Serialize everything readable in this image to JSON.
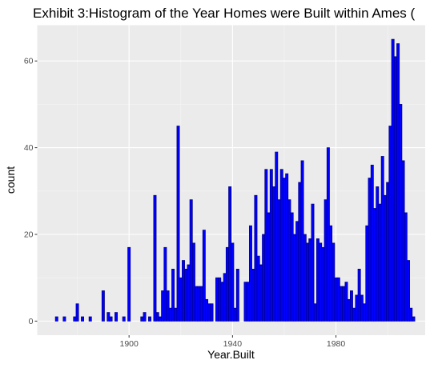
{
  "chart_data": {
    "type": "bar",
    "title": "Exhibit 3:Histogram of the Year Homes were Built within Ames (",
    "xlabel": "Year.Built",
    "ylabel": "count",
    "xlim": [
      1864.5,
      2014.5
    ],
    "ylim": [
      -3.25,
      68.25
    ],
    "x_ticks": [
      1900,
      1940,
      1980
    ],
    "y_ticks": [
      0,
      20,
      40,
      60
    ],
    "grid": true,
    "bin_width": 1,
    "x": [
      1872,
      1875,
      1879,
      1880,
      1882,
      1885,
      1890,
      1892,
      1893,
      1895,
      1898,
      1900,
      1905,
      1906,
      1908,
      1910,
      1911,
      1912,
      1913,
      1914,
      1915,
      1916,
      1917,
      1918,
      1919,
      1920,
      1921,
      1922,
      1923,
      1924,
      1925,
      1926,
      1927,
      1928,
      1929,
      1930,
      1931,
      1932,
      1934,
      1935,
      1936,
      1937,
      1938,
      1939,
      1940,
      1941,
      1942,
      1945,
      1946,
      1947,
      1948,
      1949,
      1950,
      1951,
      1952,
      1953,
      1954,
      1955,
      1956,
      1957,
      1958,
      1959,
      1960,
      1961,
      1962,
      1963,
      1964,
      1965,
      1966,
      1967,
      1968,
      1969,
      1970,
      1971,
      1972,
      1973,
      1974,
      1975,
      1976,
      1977,
      1978,
      1979,
      1980,
      1981,
      1982,
      1983,
      1984,
      1985,
      1986,
      1987,
      1988,
      1989,
      1990,
      1991,
      1992,
      1993,
      1994,
      1995,
      1996,
      1997,
      1998,
      1999,
      2000,
      2001,
      2002,
      2003,
      2004,
      2005,
      2006,
      2007,
      2008,
      2009,
      2010
    ],
    "values": [
      1,
      1,
      1,
      4,
      1,
      1,
      7,
      2,
      1,
      2,
      1,
      17,
      1,
      2,
      1,
      29,
      2,
      1,
      7,
      17,
      7,
      3,
      12,
      3,
      45,
      10,
      14,
      12,
      13,
      28,
      18,
      8,
      8,
      8,
      21,
      5,
      4,
      4,
      10,
      10,
      9,
      11,
      17,
      31,
      18,
      3,
      12,
      9,
      9,
      22,
      12,
      29,
      15,
      13,
      20,
      35,
      25,
      35,
      31,
      39,
      28,
      35,
      33,
      34,
      28,
      25,
      20,
      23,
      32,
      37,
      20,
      18,
      19,
      27,
      4,
      19,
      18,
      17,
      28,
      40,
      22,
      18,
      10,
      10,
      8,
      8,
      9,
      5,
      7,
      3,
      6,
      12,
      6,
      4,
      22,
      33,
      36,
      26,
      31,
      27,
      38,
      29,
      32,
      45,
      65,
      61,
      64,
      50,
      37,
      25,
      14,
      3,
      1
    ]
  }
}
